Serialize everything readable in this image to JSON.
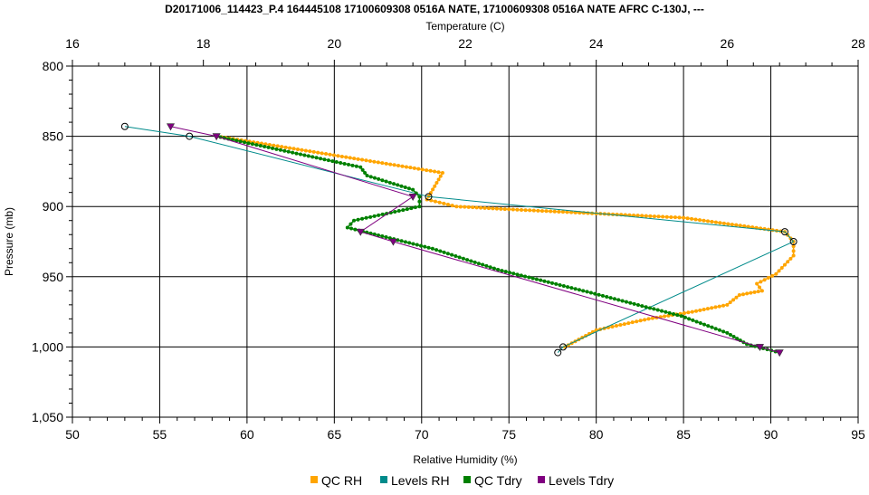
{
  "chart_data": {
    "type": "line",
    "title": "D20171006_114423_P.4 164445108 17100609308 0516A NATE, 17100609308 0516A NATE AFRC C-130J, ---",
    "top_axis": {
      "label": "Temperature (C)",
      "range": [
        16,
        28
      ],
      "ticks": [
        "16",
        "18",
        "20",
        "22",
        "24",
        "26",
        "28"
      ]
    },
    "bottom_axis": {
      "label": "Relative Humidity (%)",
      "range": [
        50,
        95
      ],
      "ticks": [
        "50",
        "55",
        "60",
        "65",
        "70",
        "75",
        "80",
        "85",
        "90",
        "95"
      ]
    },
    "left_axis": {
      "label": "Pressure (mb)",
      "range": [
        800,
        1050
      ],
      "inverted": true,
      "ticks": [
        "800",
        "850",
        "900",
        "950",
        "1,000",
        "1,050"
      ]
    },
    "grid": true,
    "legend_position": "bottom",
    "series": [
      {
        "name": "QC RH",
        "color": "#FFA500",
        "axis": "rh",
        "marker": "dot",
        "points": [
          [
            58.3,
            850
          ],
          [
            71.2,
            876
          ],
          [
            70.3,
            895
          ],
          [
            72,
            900
          ],
          [
            75,
            902
          ],
          [
            80,
            905
          ],
          [
            85,
            908
          ],
          [
            90.8,
            918
          ],
          [
            91.3,
            925
          ],
          [
            91.3,
            935
          ],
          [
            90.3,
            948
          ],
          [
            89.2,
            955
          ],
          [
            89.5,
            960
          ],
          [
            88.2,
            963
          ],
          [
            87.5,
            970
          ],
          [
            85.5,
            975
          ],
          [
            83,
            980
          ],
          [
            80,
            988
          ],
          [
            78.2,
            1000
          ]
        ]
      },
      {
        "name": "Levels RH",
        "color": "#008B8B",
        "axis": "rh",
        "marker": "circle",
        "points": [
          [
            53,
            843
          ],
          [
            56.7,
            850
          ],
          [
            70.4,
            893
          ],
          [
            90.8,
            918
          ],
          [
            91.3,
            925
          ],
          [
            78.1,
            1000
          ],
          [
            77.8,
            1004
          ]
        ]
      },
      {
        "name": "QC Tdry",
        "color": "#008000",
        "axis": "temp",
        "marker": "dot",
        "points": [
          [
            18.2,
            850
          ],
          [
            20.4,
            872
          ],
          [
            20.5,
            878
          ],
          [
            21.2,
            888
          ],
          [
            21.3,
            893
          ],
          [
            21.3,
            900
          ],
          [
            20.8,
            905
          ],
          [
            20.3,
            910
          ],
          [
            20.2,
            915
          ],
          [
            21.5,
            930
          ],
          [
            22.5,
            945
          ],
          [
            23.8,
            960
          ],
          [
            25.3,
            978
          ],
          [
            26.0,
            990
          ],
          [
            26.3,
            998
          ],
          [
            26.8,
            1004
          ]
        ]
      },
      {
        "name": "Levels Tdry",
        "color": "#800080",
        "axis": "temp",
        "marker": "triangle",
        "points": [
          [
            17.5,
            843
          ],
          [
            18.2,
            850
          ],
          [
            21.2,
            893
          ],
          [
            20.4,
            918
          ],
          [
            20.9,
            925
          ],
          [
            26.5,
            1000
          ],
          [
            26.8,
            1004
          ]
        ]
      }
    ]
  }
}
